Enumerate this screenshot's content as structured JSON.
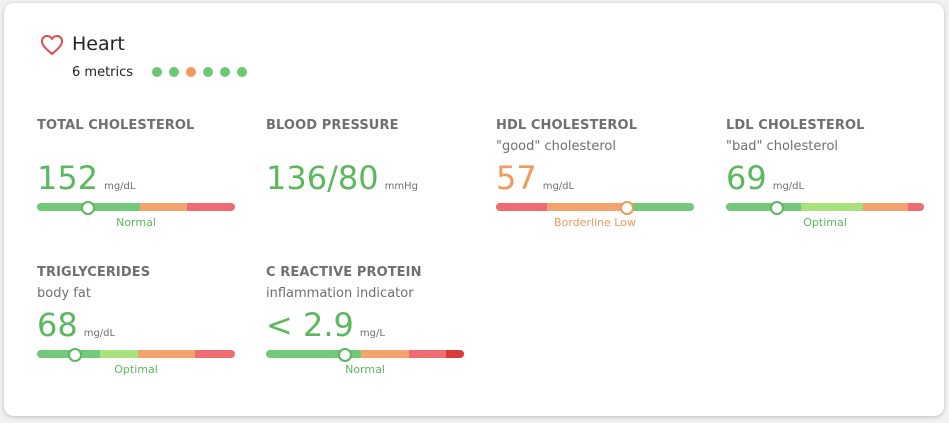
{
  "header": {
    "title": "Heart",
    "count_label": "6 metrics",
    "dots": [
      "#6cc870",
      "#6cc870",
      "#ef9a5e",
      "#6cc870",
      "#6cc870",
      "#6cc870"
    ]
  },
  "colors": {
    "green": "#5bb85d",
    "orange": "#ef9a5e",
    "seg_green": "#73c97a",
    "seg_lightgreen": "#a8e27c",
    "seg_orange": "#f3a36e",
    "seg_red": "#ee6c72",
    "seg_darkred": "#d83a3a"
  },
  "metrics": [
    {
      "name": "TOTAL CHOLESTEROL",
      "sub": "",
      "value": "152",
      "unit": "mg/dL",
      "status": "Normal",
      "status_color": "#5bb85d",
      "marker": 0.26,
      "segments": [
        [
          "#73c97a",
          0.52
        ],
        [
          "#f3a36e",
          0.24
        ],
        [
          "#ee6c72",
          0.24
        ]
      ]
    },
    {
      "name": "BLOOD PRESSURE",
      "sub": "",
      "value": "136/80",
      "unit": "mmHg",
      "status": "",
      "status_color": "#5bb85d",
      "marker": null,
      "segments": []
    },
    {
      "name": "HDL CHOLESTEROL",
      "sub": "\"good\" cholesterol",
      "value": "57",
      "unit": "mg/dL",
      "status": "Borderline Low",
      "status_color": "#ef9a5e",
      "marker": 0.66,
      "segments": [
        [
          "#ee6c72",
          0.26
        ],
        [
          "#f3a36e",
          0.41
        ],
        [
          "#73c97a",
          0.33
        ]
      ]
    },
    {
      "name": "LDL CHOLESTEROL",
      "sub": "\"bad\" cholesterol",
      "value": "69",
      "unit": "mg/dL",
      "status": "Optimal",
      "status_color": "#5bb85d",
      "marker": 0.26,
      "segments": [
        [
          "#73c97a",
          0.38
        ],
        [
          "#a8e27c",
          0.31
        ],
        [
          "#f3a36e",
          0.23
        ],
        [
          "#ee6c72",
          0.08
        ]
      ]
    },
    {
      "name": "TRIGLYCERIDES",
      "sub": "body fat",
      "value": "68",
      "unit": "mg/dL",
      "status": "Optimal",
      "status_color": "#5bb85d",
      "marker": 0.19,
      "segments": [
        [
          "#73c97a",
          0.32
        ],
        [
          "#a8e27c",
          0.19
        ],
        [
          "#f3a36e",
          0.29
        ],
        [
          "#ee6c72",
          0.2
        ]
      ]
    },
    {
      "name": "C REACTIVE PROTEIN",
      "sub": "inflammation indicator",
      "value": "< 2.9",
      "unit": "mg/L",
      "status": "Normal",
      "status_color": "#5bb85d",
      "marker": 0.4,
      "segments": [
        [
          "#73c97a",
          0.48
        ],
        [
          "#f3a36e",
          0.24
        ],
        [
          "#ee6c72",
          0.19
        ],
        [
          "#d83a3a",
          0.09
        ]
      ]
    }
  ]
}
